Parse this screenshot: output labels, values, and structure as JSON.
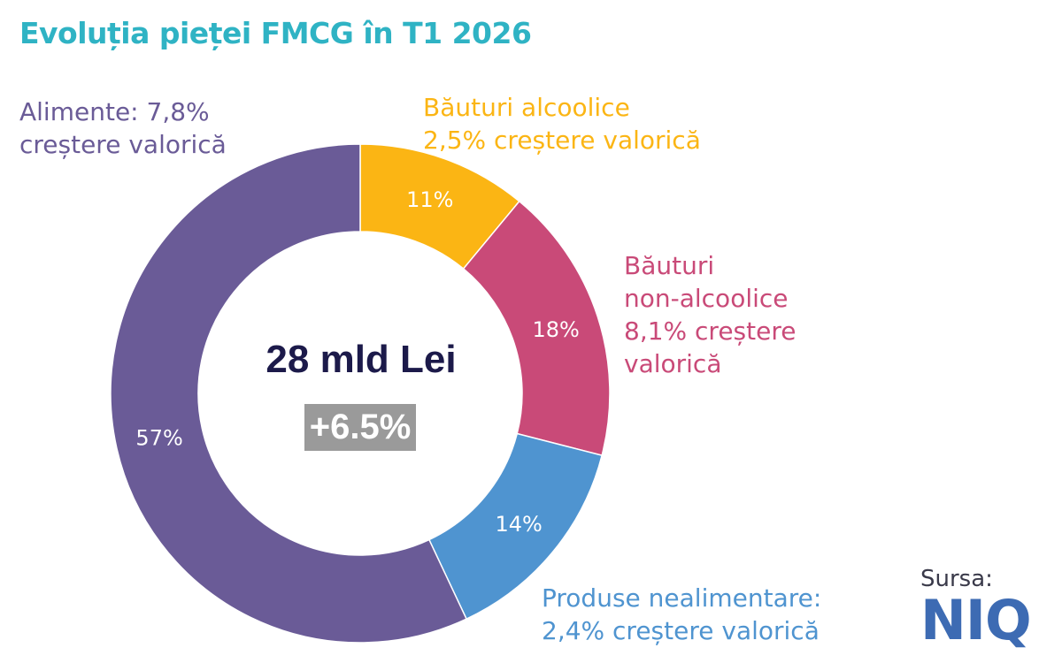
{
  "title": "Evoluția pieței FMCG în T1 2026",
  "center": {
    "value": "28 mld Lei",
    "change": "+6.5%"
  },
  "source": {
    "label": "Sursa:",
    "logo": "NIQ"
  },
  "chart_data": {
    "type": "donut",
    "title": "Evoluția pieței FMCG în T1 2026",
    "slices": [
      {
        "key": "bauturi-alcoolice",
        "name": "Băuturi alcoolice",
        "value": 11,
        "pct_label": "11%",
        "category_label": "Băuturi alcoolice\n2,5% creștere valorică",
        "growth": 2.5,
        "color": "#fbb514"
      },
      {
        "key": "bauturi-non-alcoolice",
        "name": "Băuturi non-alcoolice",
        "value": 18,
        "pct_label": "18%",
        "category_label": "Băuturi\nnon-alcoolice\n8,1% creștere\nvalorică",
        "growth": 8.1,
        "color": "#c94a78"
      },
      {
        "key": "produse-nealimentare",
        "name": "Produse nealimentare",
        "value": 14,
        "pct_label": "14%",
        "category_label": "Produse nealimentare:\n2,4% creștere valorică",
        "growth": 2.4,
        "color": "#4f94d0"
      },
      {
        "key": "alimente",
        "name": "Alimente",
        "value": 57,
        "pct_label": "57%",
        "category_label": "Alimente: 7,8%\ncreștere valorică",
        "growth": 7.8,
        "color": "#6a5b97"
      }
    ]
  }
}
